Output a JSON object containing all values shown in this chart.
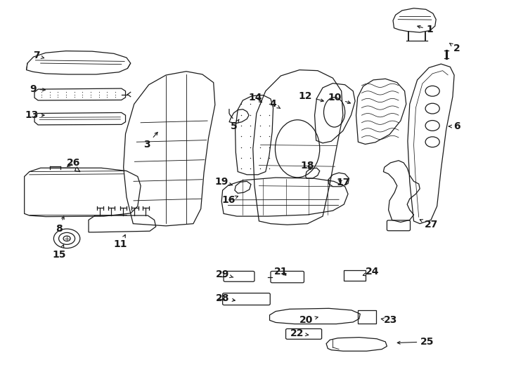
{
  "bg_color": "#ffffff",
  "line_color": "#1a1a1a",
  "lw": 0.9,
  "figsize": [
    7.34,
    5.4
  ],
  "dpi": 100,
  "labels": {
    "1": [
      0.84,
      0.93,
      0.81,
      0.942
    ],
    "2": [
      0.893,
      0.88,
      0.878,
      0.895
    ],
    "3": [
      0.28,
      0.62,
      0.305,
      0.66
    ],
    "4": [
      0.53,
      0.73,
      0.548,
      0.715
    ],
    "5": [
      0.453,
      0.67,
      0.463,
      0.69
    ],
    "6": [
      0.893,
      0.67,
      0.872,
      0.67
    ],
    "7": [
      0.062,
      0.86,
      0.082,
      0.852
    ],
    "8": [
      0.107,
      0.395,
      0.118,
      0.435
    ],
    "9": [
      0.055,
      0.77,
      0.085,
      0.768
    ],
    "10": [
      0.652,
      0.747,
      0.688,
      0.73
    ],
    "11": [
      0.228,
      0.352,
      0.24,
      0.385
    ],
    "12": [
      0.594,
      0.752,
      0.635,
      0.736
    ],
    "13": [
      0.052,
      0.7,
      0.083,
      0.7
    ],
    "14": [
      0.495,
      0.748,
      0.512,
      0.73
    ],
    "15": [
      0.107,
      0.325,
      0.118,
      0.358
    ],
    "16": [
      0.442,
      0.472,
      0.462,
      0.483
    ],
    "17": [
      0.668,
      0.518,
      0.655,
      0.528
    ],
    "18": [
      0.597,
      0.565,
      0.608,
      0.548
    ],
    "19": [
      0.428,
      0.52,
      0.454,
      0.51
    ],
    "20": [
      0.596,
      0.148,
      0.62,
      0.157
    ],
    "21": [
      0.546,
      0.278,
      0.56,
      0.265
    ],
    "22": [
      0.578,
      0.113,
      0.601,
      0.108
    ],
    "23": [
      0.762,
      0.148,
      0.742,
      0.152
    ],
    "24": [
      0.726,
      0.278,
      0.706,
      0.268
    ],
    "25": [
      0.835,
      0.09,
      0.77,
      0.087
    ],
    "26": [
      0.135,
      0.572,
      0.118,
      0.558
    ],
    "27": [
      0.843,
      0.405,
      0.815,
      0.422
    ],
    "28": [
      0.43,
      0.207,
      0.46,
      0.2
    ],
    "29": [
      0.43,
      0.272,
      0.455,
      0.262
    ]
  }
}
